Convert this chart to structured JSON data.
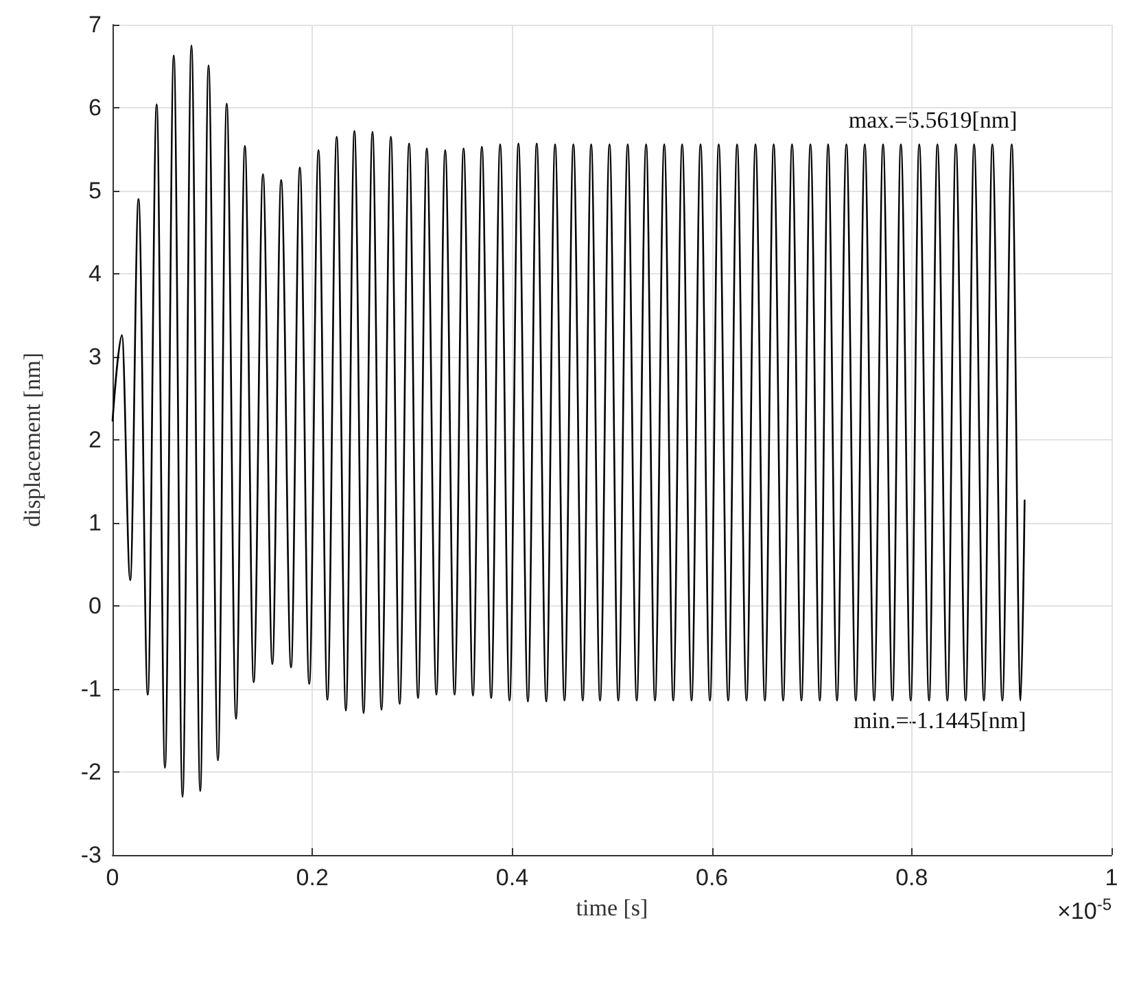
{
  "chart_data": {
    "type": "line",
    "xlabel": "time [s]",
    "ylabel": "displacement [nm]",
    "xlim": [
      0,
      1
    ],
    "xticks": [
      0,
      0.2,
      0.4,
      0.6,
      0.8,
      1
    ],
    "ylim": [
      -3,
      7
    ],
    "yticks": [
      -3,
      -2,
      -1,
      0,
      1,
      2,
      3,
      4,
      5,
      6,
      7
    ],
    "grid": true,
    "line_style": "solid",
    "series": [
      {
        "color": "#000000",
        "x": [
          0,
          0.0094,
          0.0177,
          0.026,
          0.0353,
          0.0442,
          0.0525,
          0.0613,
          0.0701,
          0.079,
          0.0878,
          0.0961,
          0.1055,
          0.1143,
          0.1236,
          0.1325,
          0.1413,
          0.1506,
          0.16,
          0.1688,
          0.1787,
          0.1875,
          0.1969,
          0.2062,
          0.2151,
          0.2244,
          0.2336,
          0.2421,
          0.2513,
          0.2602,
          0.2692,
          0.2786,
          0.2874,
          0.2969,
          0.3058,
          0.3146,
          0.3242,
          0.333,
          0.3424,
          0.3514,
          0.3608,
          0.3697,
          0.379,
          0.388,
          0.3974,
          0.4063,
          0.4158,
          0.4246,
          0.4342,
          0.443,
          0.4524,
          0.4613,
          0.4707,
          0.4791,
          0.488,
          0.4975,
          0.5063,
          0.5157,
          0.5247,
          0.5341,
          0.543,
          0.5523,
          0.5613,
          0.5702,
          0.5796,
          0.5886,
          0.598,
          0.6068,
          0.6163,
          0.6252,
          0.6346,
          0.6436,
          0.653,
          0.6618,
          0.6713,
          0.6802,
          0.6896,
          0.6986,
          0.708,
          0.7163,
          0.7252,
          0.7346,
          0.744,
          0.753,
          0.7624,
          0.7713,
          0.7807,
          0.7891,
          0.799,
          0.8075,
          0.8174,
          0.8257,
          0.8357,
          0.8441,
          0.854,
          0.8624,
          0.8723,
          0.8807,
          0.8907,
          0.9001,
          0.909,
          0.913
        ],
        "values": [
          2.23,
          3.26,
          0.31,
          4.9,
          -1.07,
          6.04,
          -1.95,
          6.63,
          -2.3,
          6.75,
          -2.23,
          6.51,
          -1.86,
          6.05,
          -1.36,
          5.54,
          -0.92,
          5.2,
          -0.7,
          5.13,
          -0.74,
          5.28,
          -0.94,
          5.49,
          -1.13,
          5.65,
          -1.26,
          5.72,
          -1.29,
          5.71,
          -1.25,
          5.65,
          -1.18,
          5.57,
          -1.11,
          5.51,
          -1.07,
          5.49,
          -1.07,
          5.51,
          -1.08,
          5.53,
          -1.11,
          5.56,
          -1.14,
          5.57,
          -1.15,
          5.57,
          -1.15,
          5.56,
          -1.14,
          5.56,
          -1.14,
          5.56,
          -1.14,
          5.56,
          -1.14,
          5.56,
          -1.14,
          5.56,
          -1.14,
          5.56,
          -1.14,
          5.56,
          -1.14,
          5.56,
          -1.14,
          5.56,
          -1.14,
          5.56,
          -1.14,
          5.56,
          -1.14,
          5.56,
          -1.14,
          5.56,
          -1.14,
          5.56,
          -1.14,
          5.56,
          -1.14,
          5.56,
          -1.14,
          5.56,
          -1.14,
          5.56,
          -1.14,
          5.56,
          -1.14,
          5.56,
          -1.14,
          5.56,
          -1.14,
          5.56,
          -1.14,
          5.56,
          -1.14,
          5.56,
          -1.14,
          5.56,
          -1.14,
          1.27
        ]
      }
    ],
    "annotations": [
      {
        "text": "max.=5.5619[nm]",
        "x": 0.9001,
        "y": 5.5619
      },
      {
        "text": "min.=-1.1445[nm]",
        "x": 0.909,
        "y": -1.1445
      },
      "×10$^{-5}$"
    ]
  }
}
